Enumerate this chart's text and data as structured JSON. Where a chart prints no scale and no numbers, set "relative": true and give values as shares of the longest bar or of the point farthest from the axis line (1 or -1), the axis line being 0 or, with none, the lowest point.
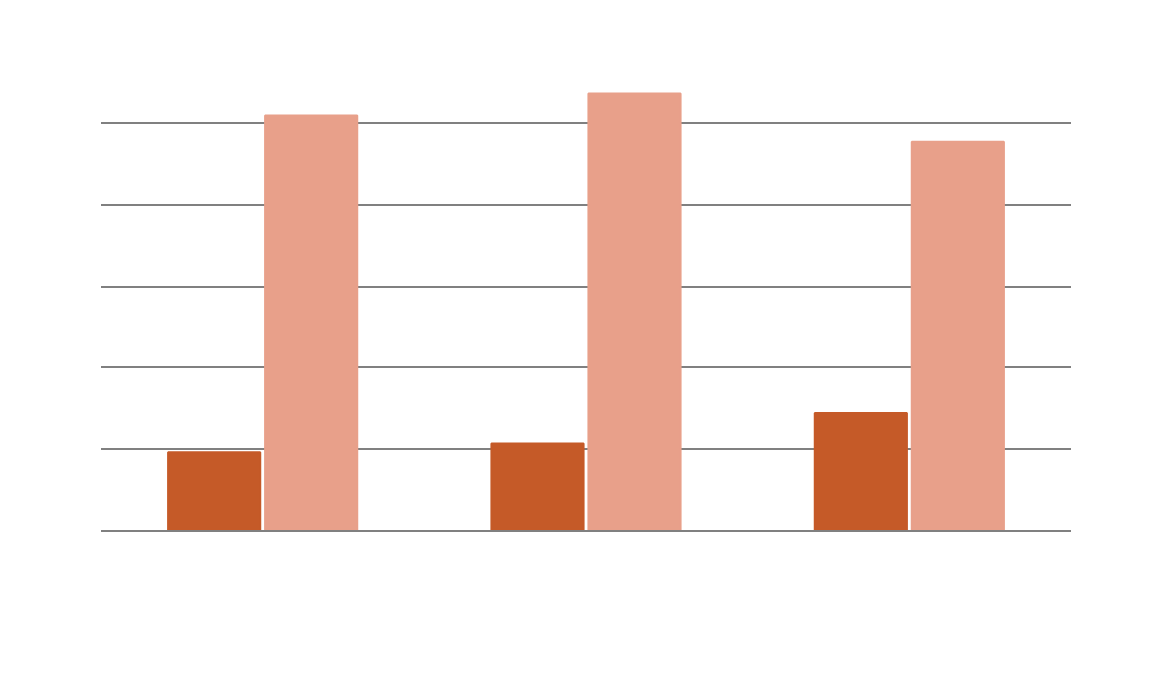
{
  "chart_data": {
    "type": "bar",
    "relative": true,
    "categories": [
      null,
      null,
      null
    ],
    "grid": "y",
    "series": [
      {
        "color": "#c55a28",
        "values": [
          0.18,
          0.2,
          0.27
        ]
      },
      {
        "color": "#e8a08a",
        "values": [
          0.95,
          1,
          0.89
        ]
      }
    ]
  }
}
